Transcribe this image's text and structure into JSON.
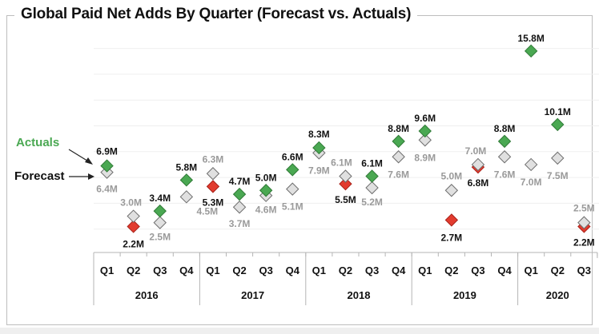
{
  "chart_data": {
    "type": "scatter",
    "title": "Global Paid Net Adds By Quarter (Forecast vs. Actuals)",
    "xlabel": "",
    "ylabel": "",
    "ylim": [
      0,
      16
    ],
    "grid": true,
    "gridlines_y": [
      2,
      4,
      6,
      8,
      10,
      12,
      14,
      16
    ],
    "years": [
      {
        "label": "2016",
        "quarters": [
          "Q1",
          "Q2",
          "Q3",
          "Q4"
        ]
      },
      {
        "label": "2017",
        "quarters": [
          "Q1",
          "Q2",
          "Q3",
          "Q4"
        ]
      },
      {
        "label": "2018",
        "quarters": [
          "Q1",
          "Q2",
          "Q3",
          "Q4"
        ]
      },
      {
        "label": "2019",
        "quarters": [
          "Q1",
          "Q2",
          "Q3",
          "Q4"
        ]
      },
      {
        "label": "2020",
        "quarters": [
          "Q1",
          "Q2",
          "Q3"
        ]
      }
    ],
    "categories": [
      "2016 Q1",
      "2016 Q2",
      "2016 Q3",
      "2016 Q4",
      "2017 Q1",
      "2017 Q2",
      "2017 Q3",
      "2017 Q4",
      "2018 Q1",
      "2018 Q2",
      "2018 Q3",
      "2018 Q4",
      "2019 Q1",
      "2019 Q2",
      "2019 Q3",
      "2019 Q4",
      "2020 Q1",
      "2020 Q2",
      "2020 Q3"
    ],
    "series": [
      {
        "name": "Forecast",
        "color": "#e0e0e0",
        "values": [
          6.4,
          3.0,
          2.5,
          4.5,
          6.3,
          3.7,
          4.6,
          5.1,
          7.9,
          6.1,
          5.2,
          7.6,
          8.9,
          5.0,
          7.0,
          7.6,
          7.0,
          7.5,
          2.5
        ],
        "labels": [
          "6.4M",
          "3.0M",
          "2.5M",
          "4.5M",
          "6.3M",
          "3.7M",
          "4.6M",
          "5.1M",
          "7.9M",
          "6.1M",
          "5.2M",
          "7.6M",
          "8.9M",
          "5.0M",
          "7.0M",
          "7.6M",
          "7.0M",
          "7.5M",
          "2.5M"
        ]
      },
      {
        "name": "Actuals",
        "values": [
          6.9,
          2.2,
          3.4,
          5.8,
          5.3,
          4.7,
          5.0,
          6.6,
          8.3,
          5.5,
          6.1,
          8.8,
          9.6,
          2.7,
          6.8,
          8.8,
          15.8,
          10.1,
          2.2
        ],
        "labels": [
          "6.9M",
          "2.2M",
          "3.4M",
          "5.8M",
          "5.3M",
          "4.7M",
          "5.0M",
          "6.6M",
          "8.3M",
          "5.5M",
          "6.1M",
          "8.8M",
          "9.6M",
          "2.7M",
          "6.8M",
          "8.8M",
          "15.8M",
          "10.1M",
          "2.2M"
        ],
        "beat_color": "#4aa852",
        "miss_color": "#e23b2e"
      }
    ],
    "annotations": [
      {
        "text": "Actuals",
        "color": "#4aa852",
        "points_to": "Actuals 2016 Q1"
      },
      {
        "text": "Forecast",
        "color": "#111111",
        "points_to": "Forecast 2016 Q1"
      }
    ]
  }
}
